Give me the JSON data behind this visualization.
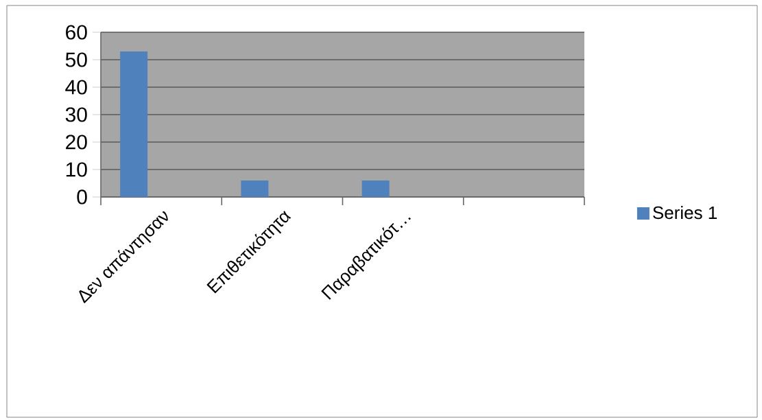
{
  "chart_data": {
    "type": "bar",
    "categories": [
      "Δεν απάντησαν",
      "Επιθετικότητα",
      "Παραβατικότ…",
      null
    ],
    "series": [
      {
        "name": "Series 1",
        "color": "#4f81bd",
        "values": [
          53,
          6,
          6,
          null
        ]
      }
    ],
    "ylim": [
      0,
      60
    ],
    "yticks": [
      0,
      10,
      20,
      30,
      40,
      50,
      60
    ],
    "grid": "y",
    "legend": "right"
  }
}
